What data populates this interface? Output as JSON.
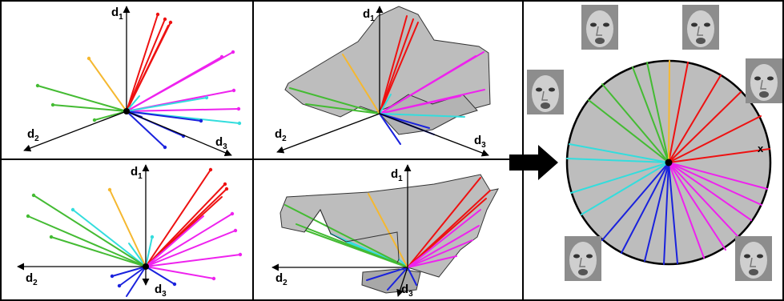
{
  "axis_labels": {
    "d1": {
      "base": "d",
      "sub": "1"
    },
    "d2": {
      "base": "d",
      "sub": "2"
    },
    "d3": {
      "base": "d",
      "sub": "3"
    }
  },
  "circle_label": "x",
  "colors": {
    "red": "#ee1111",
    "magenta": "#ee22ee",
    "cyan": "#33dddd",
    "blue": "#1a22dd",
    "green": "#44bb33",
    "orange": "#f5b830",
    "gray_fill": "#bdbdbd",
    "face_bg": "#9a9a9a"
  },
  "panels": [
    {
      "id": "top-left-vectors"
    },
    {
      "id": "top-middle-surface"
    },
    {
      "id": "bottom-left-vectors"
    },
    {
      "id": "bottom-middle-surface"
    },
    {
      "id": "right-expression-circle"
    }
  ]
}
